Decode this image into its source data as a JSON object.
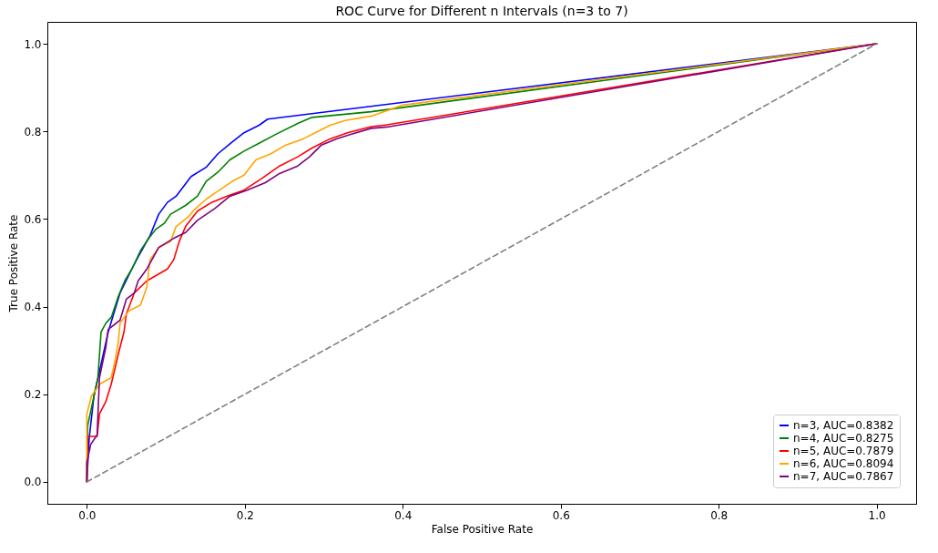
{
  "chart_data": {
    "type": "line",
    "title": "ROC Curve for Different n Intervals (n=3 to 7)",
    "xlabel": "False Positive Rate",
    "ylabel": "True Positive Rate",
    "xlim": [
      -0.05,
      1.05
    ],
    "ylim": [
      -0.05,
      1.05
    ],
    "xticks": [
      {
        "value": 0,
        "label": "0.0"
      },
      0.2,
      0.4,
      0.6,
      0.8,
      {
        "value": 1,
        "label": "1.0"
      }
    ],
    "yticks": [
      {
        "value": 0,
        "label": "0.0"
      },
      0.2,
      0.4,
      0.6,
      0.8,
      {
        "value": 1,
        "label": "1.0"
      }
    ],
    "grid": false,
    "legend": "bottom right",
    "series": [
      {
        "name": "n=3, AUC=0.8382",
        "color": "#0000ff",
        "x": [
          0,
          0.003,
          0.009,
          0.016,
          0.027,
          0.035,
          0.042,
          0.057,
          0.065,
          0.08,
          0.091,
          0.102,
          0.113,
          0.132,
          0.151,
          0.166,
          0.184,
          0.199,
          0.218,
          0.229,
          1
        ],
        "values": [
          0,
          0.1,
          0.197,
          0.252,
          0.342,
          0.39,
          0.431,
          0.486,
          0.514,
          0.562,
          0.611,
          0.638,
          0.652,
          0.697,
          0.718,
          0.749,
          0.776,
          0.797,
          0.814,
          0.828,
          1
        ]
      },
      {
        "name": "n=4, AUC=0.8275",
        "color": "#008000",
        "x": [
          0,
          0.001,
          0.014,
          0.018,
          0.024,
          0.031,
          0.04,
          0.048,
          0.057,
          0.068,
          0.078,
          0.087,
          0.098,
          0.106,
          0.125,
          0.14,
          0.151,
          0.166,
          0.181,
          0.199,
          0.218,
          0.24,
          0.267,
          0.285,
          0.36,
          1
        ],
        "values": [
          0,
          0.128,
          0.238,
          0.342,
          0.362,
          0.376,
          0.424,
          0.459,
          0.486,
          0.528,
          0.555,
          0.576,
          0.59,
          0.611,
          0.631,
          0.652,
          0.686,
          0.707,
          0.735,
          0.755,
          0.773,
          0.794,
          0.818,
          0.832,
          0.845,
          1
        ]
      },
      {
        "name": "n=5, AUC=0.7879",
        "color": "#ff0000",
        "x": [
          0,
          0.001,
          0.013,
          0.016,
          0.024,
          0.031,
          0.04,
          0.047,
          0.05,
          0.06,
          0.076,
          0.102,
          0.11,
          0.117,
          0.125,
          0.14,
          0.158,
          0.177,
          0.199,
          0.222,
          0.244,
          0.267,
          0.285,
          0.308,
          0.33,
          0.36,
          0.38,
          1
        ],
        "values": [
          0,
          0.104,
          0.104,
          0.155,
          0.183,
          0.224,
          0.293,
          0.342,
          0.383,
          0.431,
          0.459,
          0.486,
          0.507,
          0.549,
          0.583,
          0.618,
          0.638,
          0.652,
          0.666,
          0.693,
          0.721,
          0.742,
          0.762,
          0.783,
          0.797,
          0.811,
          0.815,
          1
        ]
      },
      {
        "name": "n=6, AUC=0.8094",
        "color": "#ffa500",
        "x": [
          0,
          0,
          0.006,
          0.017,
          0.031,
          0.036,
          0.04,
          0.042,
          0.053,
          0.068,
          0.076,
          0.08,
          0.091,
          0.106,
          0.113,
          0.128,
          0.136,
          0.151,
          0.162,
          0.184,
          0.199,
          0.214,
          0.233,
          0.252,
          0.274,
          0.289,
          0.308,
          0.327,
          0.36,
          0.4,
          1
        ],
        "values": [
          0,
          0.155,
          0.197,
          0.224,
          0.238,
          0.28,
          0.321,
          0.362,
          0.39,
          0.404,
          0.445,
          0.507,
          0.535,
          0.549,
          0.583,
          0.604,
          0.621,
          0.645,
          0.659,
          0.686,
          0.7,
          0.735,
          0.749,
          0.769,
          0.783,
          0.797,
          0.814,
          0.825,
          0.835,
          0.86,
          1
        ]
      },
      {
        "name": "n=7, AUC=0.7867",
        "color": "#800080",
        "x": [
          0,
          0,
          0.005,
          0.013,
          0.016,
          0.024,
          0.027,
          0.042,
          0.05,
          0.06,
          0.065,
          0.076,
          0.091,
          0.11,
          0.125,
          0.14,
          0.162,
          0.181,
          0.203,
          0.226,
          0.244,
          0.267,
          0.282,
          0.297,
          0.316,
          0.334,
          0.36,
          0.38,
          1
        ],
        "values": [
          0,
          0.044,
          0.086,
          0.107,
          0.238,
          0.307,
          0.348,
          0.369,
          0.417,
          0.431,
          0.459,
          0.486,
          0.535,
          0.556,
          0.569,
          0.597,
          0.624,
          0.652,
          0.666,
          0.683,
          0.704,
          0.721,
          0.742,
          0.769,
          0.783,
          0.793,
          0.807,
          0.81,
          1
        ]
      },
      {
        "color": "#808080",
        "line_style": "dashed",
        "x": [
          0,
          1
        ],
        "values": [
          0,
          1
        ]
      }
    ]
  }
}
